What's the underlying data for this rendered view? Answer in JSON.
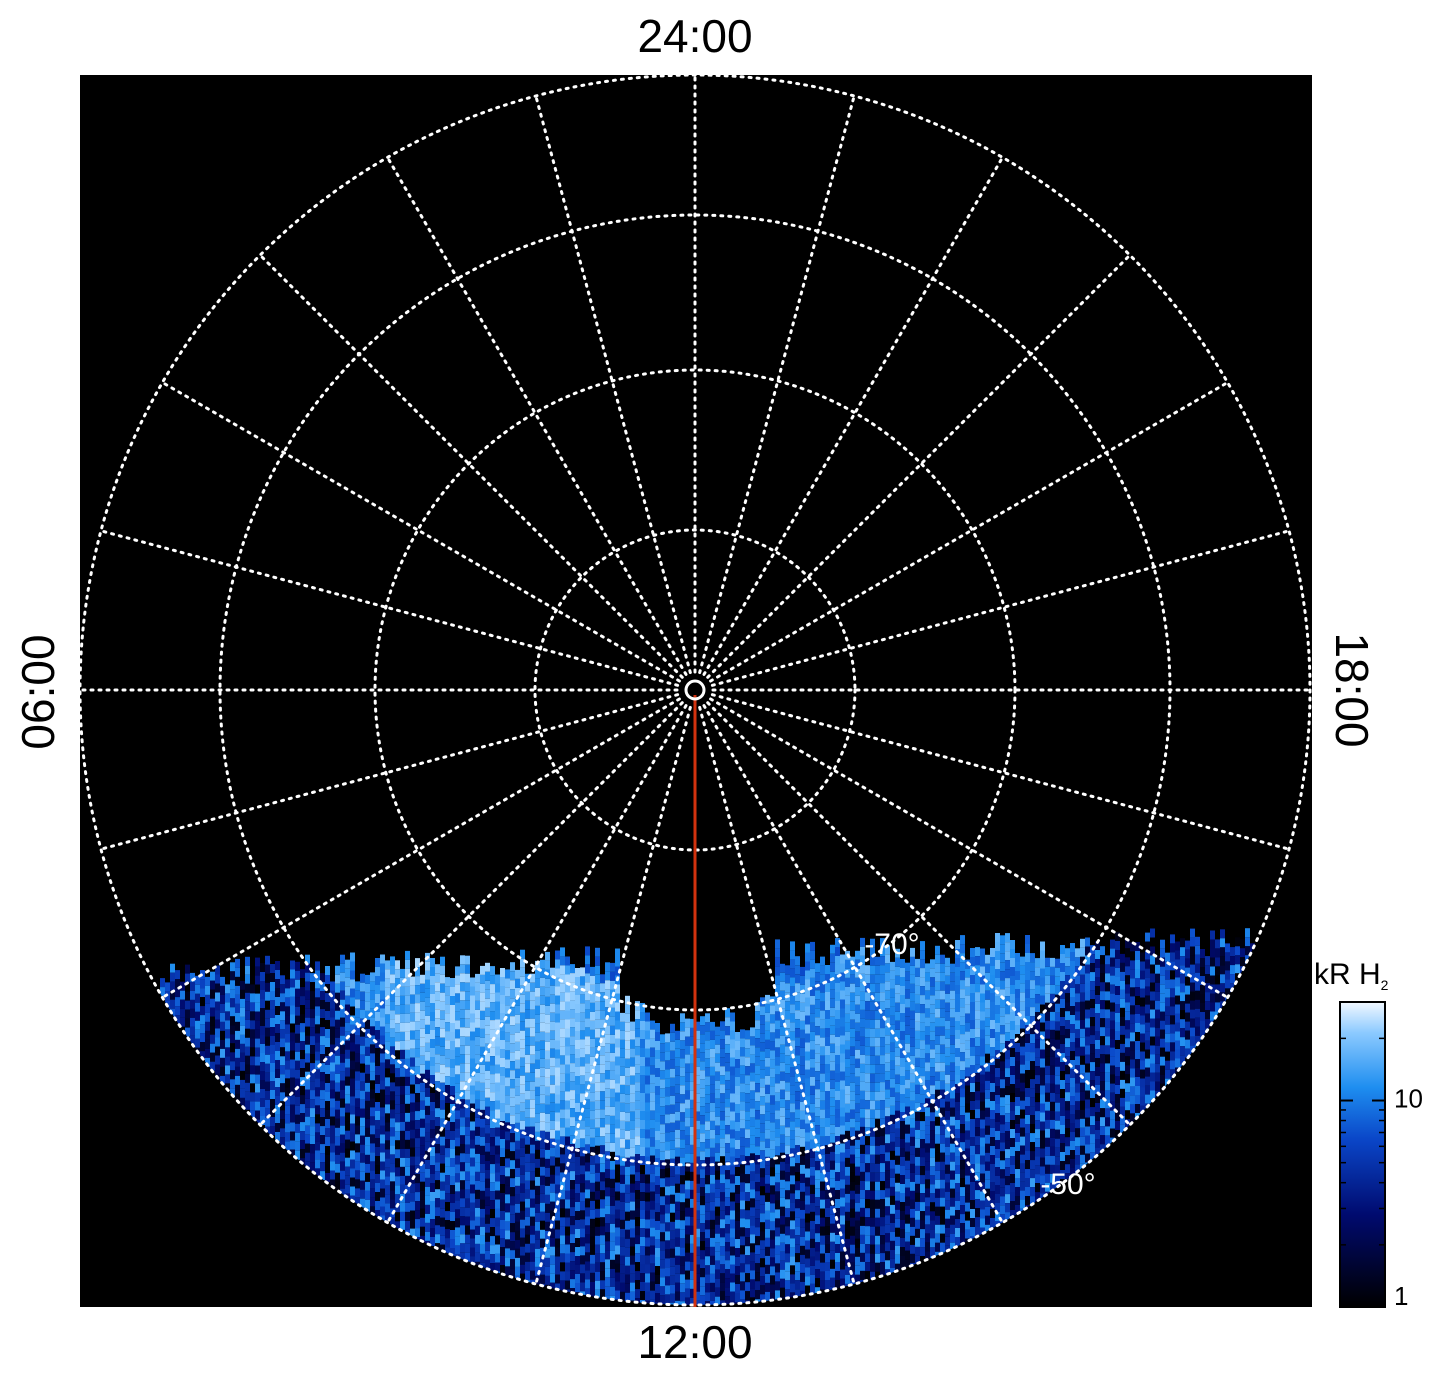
{
  "time_labels": {
    "top": "24:00",
    "bottom": "12:00",
    "left": "06:00",
    "right": "18:00"
  },
  "latitude_labels": [
    "-70°",
    "-50°"
  ],
  "colorbar": {
    "title": {
      "text": "kR H",
      "subscript": "2"
    },
    "range": [
      1,
      30
    ],
    "ticks": [
      1,
      10
    ],
    "scale": "log"
  }
}
